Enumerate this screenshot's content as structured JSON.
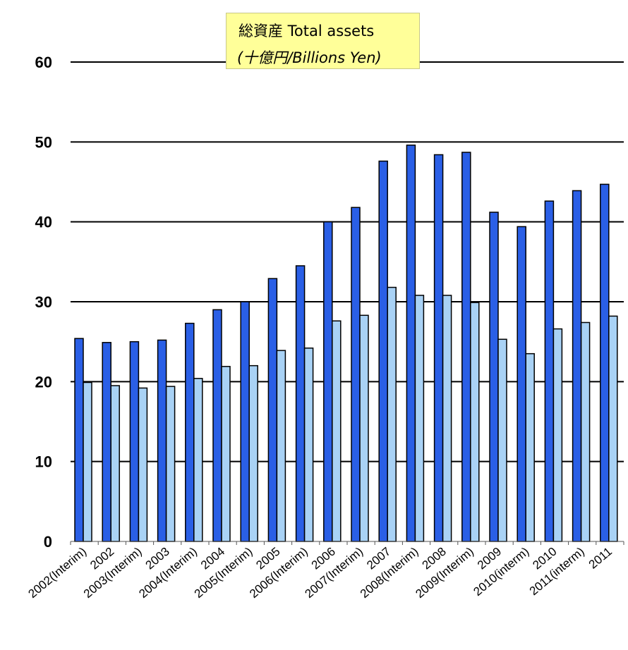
{
  "chart_data": {
    "type": "bar",
    "title": "総資産 Total assets",
    "subtitle": "(十億円/Billions Yen)",
    "categories": [
      "2002(Interim)",
      "2002",
      "2003(Interim)",
      "2003",
      "2004(Interim)",
      "2004",
      "2005(Interim)",
      "2005",
      "2006(Interim)",
      "2006",
      "2007(Interim)",
      "2007",
      "2008(Interim)",
      "2008",
      "2009(Interim)",
      "2009",
      "2010(interm)",
      "2010",
      "2011(interm)",
      "2011"
    ],
    "series": [
      {
        "color": "#2a5fe6",
        "values": [
          25.4,
          24.9,
          25.0,
          25.2,
          27.3,
          29.0,
          30.0,
          32.9,
          34.5,
          40.0,
          41.8,
          47.6,
          49.6,
          48.4,
          48.7,
          41.2,
          39.4,
          42.6,
          43.9,
          44.7
        ]
      },
      {
        "color": "#a9d2f5",
        "values": [
          19.9,
          19.5,
          19.2,
          19.4,
          20.4,
          21.9,
          22.0,
          23.9,
          24.2,
          27.6,
          28.3,
          31.8,
          30.8,
          30.8,
          29.9,
          25.3,
          23.5,
          26.6,
          27.4,
          28.2
        ]
      }
    ],
    "ylim": [
      0,
      60
    ],
    "yticks": [
      "0",
      "10",
      "20",
      "30",
      "40",
      "50",
      "60"
    ],
    "grid": true,
    "legend": "none"
  }
}
